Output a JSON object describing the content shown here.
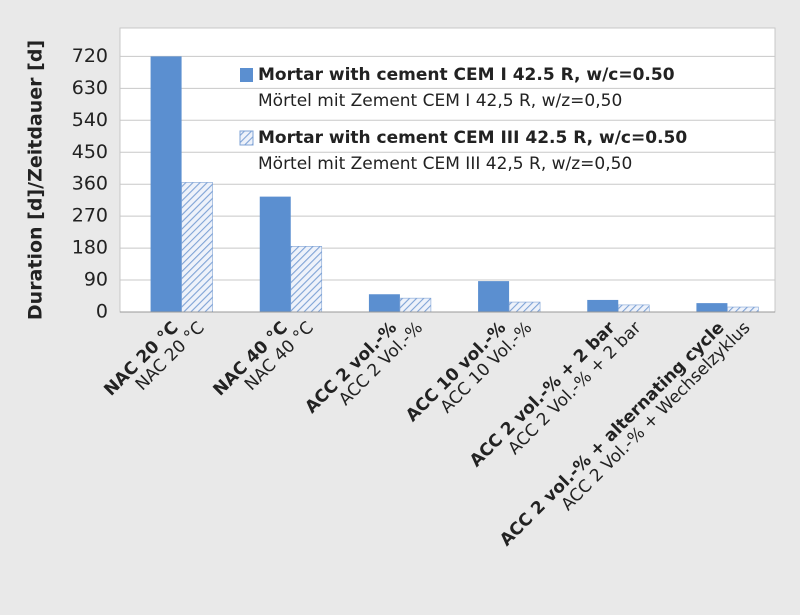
{
  "chart_data": {
    "type": "bar",
    "y_label": "Duration [d]/Zeitdauer [d]",
    "categories": [
      "NAC 20 °C",
      "NAC 40 °C",
      "ACC 2 vol.-%",
      "ACC 10 vol.-%",
      "ACC 2 vol.-% + 2 bar",
      "ACC 2 vol.-% + alternating cycle"
    ],
    "categories_de": [
      "NAC 20 °C",
      "NAC 40 °C",
      "ACC 2 Vol.-%",
      "ACC 10 Vol.-%",
      "ACC 2 Vol.-% + 2 bar",
      "ACC 2 Vol.-% + Wechselzyklus"
    ],
    "series": [
      {
        "name": "Mortar with cement CEM I 42.5 R, w/c=0.50",
        "name_de": "Mörtel mit Zement CEM I 42,5 R, w/z=0,50",
        "color": "#5b8fd0",
        "fill": "solid",
        "values": [
          720,
          325,
          50,
          87,
          34,
          25
        ]
      },
      {
        "name": "Mortar with cement CEM III 42.5 R, w/c=0.50",
        "name_de": "Mörtel mit Zement CEM III 42,5 R, w/z=0,50",
        "color": "#7fa3d6",
        "fill": "hatch",
        "values": [
          365,
          185,
          39,
          28,
          20,
          14
        ]
      }
    ],
    "ylim": [
      0,
      800
    ],
    "yticks": [
      0,
      90,
      180,
      270,
      360,
      450,
      540,
      630,
      720
    ],
    "grid": true,
    "legend": "upper right"
  }
}
